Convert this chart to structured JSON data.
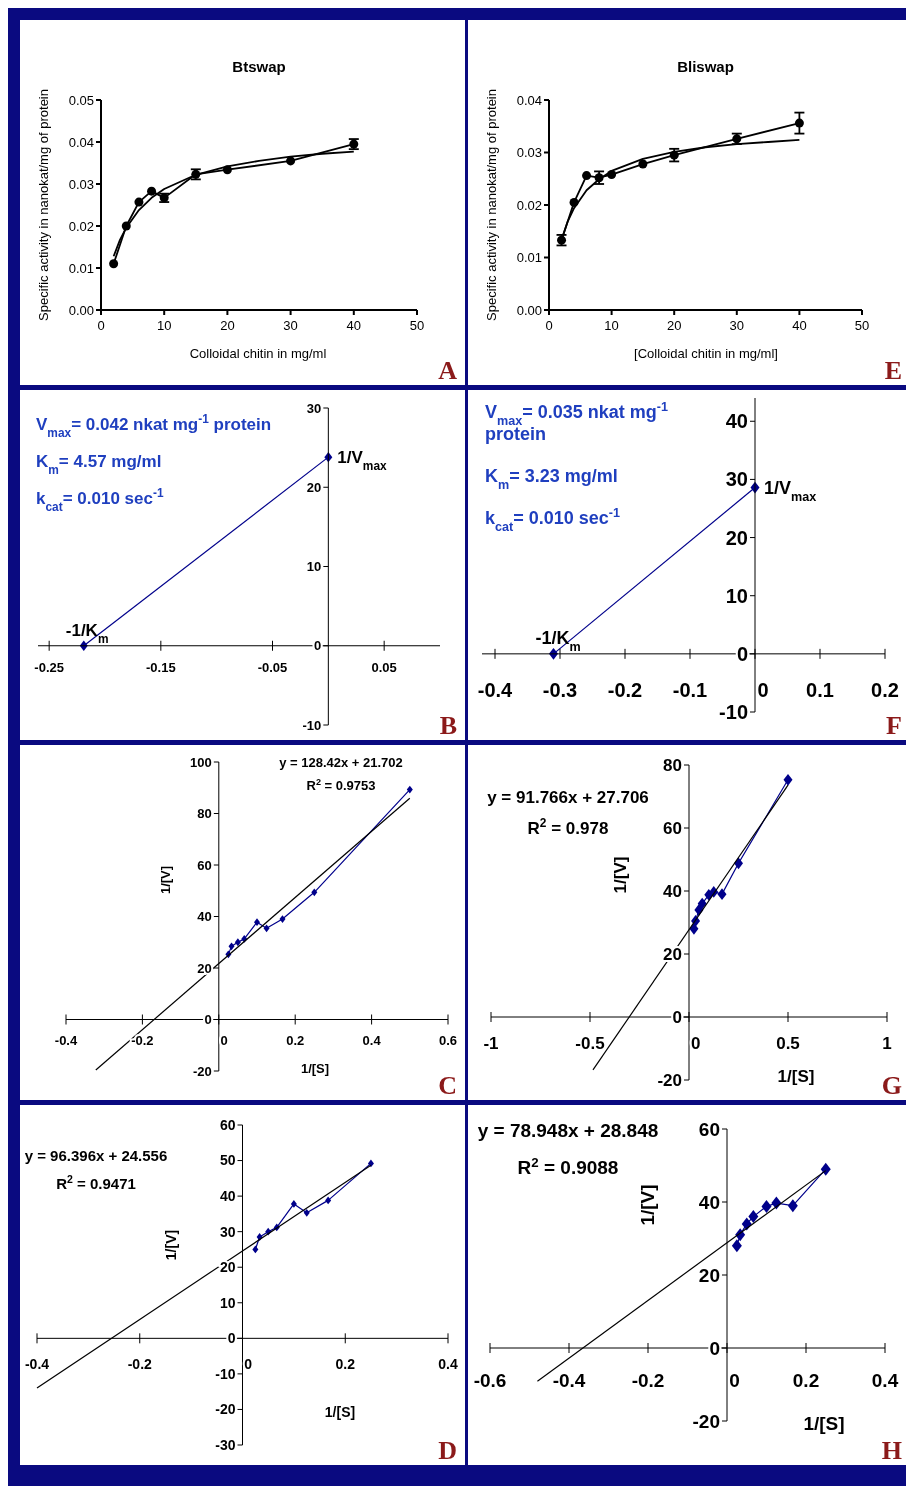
{
  "chart_data": [
    {
      "type": "line",
      "title": "Btswap",
      "xlabel": "Colloidal chitin in mg/ml",
      "ylabel": "Specific activity in nanokat/mg of protein",
      "xlim": [
        0,
        50
      ],
      "xticks": [
        0,
        10,
        20,
        30,
        40,
        50
      ],
      "ylim": [
        0,
        0.05
      ],
      "yticks": [
        {
          "value": 0,
          "label": "0.00"
        },
        0.01,
        0.02,
        0.03,
        0.04,
        0.05
      ],
      "annotations": [
        "A"
      ],
      "series": [
        {
          "color": "#000000",
          "marker": "circle",
          "x": [
            2,
            4,
            6,
            8,
            10,
            15,
            20,
            30,
            40
          ],
          "values": [
            0.011,
            0.02,
            0.0257,
            0.0283,
            0.0267,
            0.0323,
            0.0334,
            0.0355,
            0.0395
          ],
          "errors": [
            null,
            null,
            null,
            null,
            0.001,
            0.0012,
            null,
            null,
            0.0012
          ]
        },
        {
          "color": "#000000",
          "marker": "none",
          "x": [
            2,
            3,
            4,
            6,
            8,
            10,
            15,
            20,
            25,
            30,
            35,
            40
          ],
          "values": [
            0.0128,
            0.0167,
            0.0196,
            0.0238,
            0.0267,
            0.0288,
            0.0322,
            0.0342,
            0.0355,
            0.0365,
            0.0372,
            0.0377
          ]
        }
      ]
    },
    {
      "type": "line",
      "title": "Bliswap",
      "xlabel": "[Colloidal chitin in mg/ml]",
      "ylabel": "Specific activity in nanokat/mg of protein",
      "xlim": [
        0,
        50
      ],
      "xticks": [
        0,
        10,
        20,
        30,
        40,
        50
      ],
      "ylim": [
        0,
        0.04
      ],
      "yticks": [
        {
          "value": 0,
          "label": "0.00"
        },
        0.01,
        0.02,
        0.03,
        0.04
      ],
      "annotations": [
        "E"
      ],
      "series": [
        {
          "color": "#000000",
          "marker": "circle",
          "x": [
            2,
            4,
            6,
            8,
            10,
            15,
            20,
            30,
            40
          ],
          "values": [
            0.0133,
            0.0205,
            0.0256,
            0.0252,
            0.0258,
            0.0278,
            0.0295,
            0.0326,
            0.0356
          ],
          "errors": [
            0.001,
            null,
            null,
            0.0012,
            null,
            null,
            0.0012,
            0.001,
            0.002
          ]
        },
        {
          "color": "#000000",
          "marker": "none",
          "x": [
            2,
            3,
            4,
            6,
            8,
            10,
            15,
            20,
            25,
            30,
            35,
            40
          ],
          "values": [
            0.0134,
            0.0169,
            0.0194,
            0.0228,
            0.0249,
            0.0265,
            0.0288,
            0.0301,
            0.031,
            0.0316,
            0.032,
            0.0324
          ]
        }
      ]
    },
    {
      "type": "line",
      "xlim": [
        -0.26,
        0.1
      ],
      "xticks": [
        -0.25,
        -0.15,
        -0.05,
        0.05
      ],
      "ylim": [
        -10,
        30
      ],
      "yticks": [
        -10,
        0,
        10,
        20,
        30
      ],
      "annotations": [
        "V$_{max}$= 0.042 nkat mg$^{-1}$ protein",
        "K$_{m}$= 4.57 mg/ml",
        "k$_{cat}$= 0.010 sec$^{-1}$",
        {
          "text": "-1/K$_{m}$",
          "x": -0.219,
          "y": 0
        },
        {
          "text": "1/V$_{max}$",
          "x": 0,
          "y": 23.8
        },
        "B"
      ],
      "series": [
        {
          "color": "#00008b",
          "marker": "diamond",
          "x": [
            -0.219,
            0
          ],
          "values": [
            0,
            23.8
          ]
        }
      ]
    },
    {
      "type": "line",
      "xlim": [
        -0.42,
        0.2
      ],
      "xticks": [
        -0.4,
        -0.3,
        -0.2,
        -0.1,
        0,
        0.1,
        0.2
      ],
      "ylim": [
        -10,
        44
      ],
      "yticks": [
        -10,
        0,
        10,
        20,
        30,
        40
      ],
      "annotations": [
        "V$_{max}$= 0.035 nkat mg$^{-1}$ protein",
        "K$_{m}$= 3.23 mg/ml",
        "k$_{cat}$= 0.010 sec$^{-1}$",
        {
          "text": "-1/K$_{m}$",
          "x": -0.31,
          "y": 0
        },
        {
          "text": "1/V$_{max}$",
          "x": 0,
          "y": 28.6
        },
        "F"
      ],
      "series": [
        {
          "color": "#00008b",
          "marker": "diamond",
          "x": [
            -0.31,
            0
          ],
          "values": [
            0,
            28.6
          ]
        }
      ]
    },
    {
      "type": "line",
      "xlabel": "1/[S]",
      "ylabel": "1/[V]",
      "xlim": [
        -0.4,
        0.6
      ],
      "xticks": [
        -0.4,
        -0.2,
        0,
        0.2,
        0.4,
        0.6
      ],
      "ylim": [
        -20,
        100
      ],
      "yticks": [
        -20,
        0,
        20,
        40,
        60,
        80,
        100
      ],
      "annotations": [
        "y = 128.42x + 21.702",
        "R$^{2}$ = 0.9753",
        "C"
      ],
      "series": [
        {
          "color": "#00008b",
          "marker": "diamond",
          "x": [
            0.025,
            0.0333,
            0.05,
            0.0667,
            0.1,
            0.125,
            0.1667,
            0.25,
            0.5
          ],
          "values": [
            25.3,
            28.4,
            30,
            31.3,
            37.8,
            35.4,
            39,
            49.4,
            89.3
          ]
        },
        {
          "color": "#000000",
          "marker": "none",
          "x": [
            -0.322,
            0.5
          ],
          "values": [
            -19.6,
            85.9
          ]
        }
      ]
    },
    {
      "type": "line",
      "xlabel": "1/[S]",
      "ylabel": "1/[V]",
      "xlim": [
        -1,
        1
      ],
      "xticks": [
        -1,
        -0.5,
        0,
        0.5,
        1
      ],
      "ylim": [
        -20,
        80
      ],
      "yticks": [
        -20,
        0,
        20,
        40,
        60,
        80
      ],
      "annotations": [
        "y = 91.766x + 27.706",
        "R$^{2}$ = 0.978",
        "G"
      ],
      "series": [
        {
          "color": "#00008b",
          "marker": "diamond",
          "x": [
            0.025,
            0.0333,
            0.05,
            0.0667,
            0.1,
            0.125,
            0.1667,
            0.25,
            0.5
          ],
          "values": [
            28,
            30.5,
            34,
            36,
            38.8,
            39.7,
            39,
            48.8,
            75.3
          ]
        },
        {
          "color": "#000000",
          "marker": "none",
          "x": [
            -0.485,
            0.5
          ],
          "values": [
            -16.8,
            73.6
          ]
        }
      ]
    },
    {
      "type": "line",
      "xlabel": "1/[S]",
      "ylabel": "1/[V]",
      "xlim": [
        -0.4,
        0.4
      ],
      "xticks": [
        -0.4,
        -0.2,
        0,
        0.2,
        0.4
      ],
      "ylim": [
        -30,
        60
      ],
      "yticks": [
        -30,
        -20,
        -10,
        0,
        10,
        20,
        30,
        40,
        50,
        60
      ],
      "annotations": [
        "y = 96.396x + 24.556",
        "R$^{2}$ = 0.9471",
        "D"
      ],
      "series": [
        {
          "color": "#00008b",
          "marker": "diamond",
          "x": [
            0.025,
            0.0333,
            0.05,
            0.0667,
            0.1,
            0.125,
            0.1667,
            0.25
          ],
          "values": [
            25,
            28.5,
            30,
            31.2,
            37.8,
            35.3,
            38.8,
            49.2
          ]
        },
        {
          "color": "#000000",
          "marker": "none",
          "x": [
            -0.4,
            0.25
          ],
          "values": [
            -14,
            48.7
          ]
        }
      ]
    },
    {
      "type": "line",
      "xlabel": "1/[S]",
      "ylabel": "1/[V]",
      "xlim": [
        -0.6,
        0.4
      ],
      "xticks": [
        -0.6,
        -0.4,
        -0.2,
        0,
        0.2,
        0.4
      ],
      "ylim": [
        -20,
        60
      ],
      "yticks": [
        -20,
        0,
        20,
        40,
        60
      ],
      "annotations": [
        "y = 78.948x + 28.848",
        "R$^{2}$ = 0.9088",
        "H"
      ],
      "series": [
        {
          "color": "#00008b",
          "marker": "diamond",
          "x": [
            0.025,
            0.0333,
            0.05,
            0.0667,
            0.1,
            0.125,
            0.1667,
            0.25
          ],
          "values": [
            28,
            31,
            34,
            36,
            38.8,
            39.7,
            39,
            49
          ]
        },
        {
          "color": "#000000",
          "marker": "none",
          "x": [
            -0.48,
            0.25
          ],
          "values": [
            -9.1,
            48.6
          ]
        }
      ]
    }
  ]
}
